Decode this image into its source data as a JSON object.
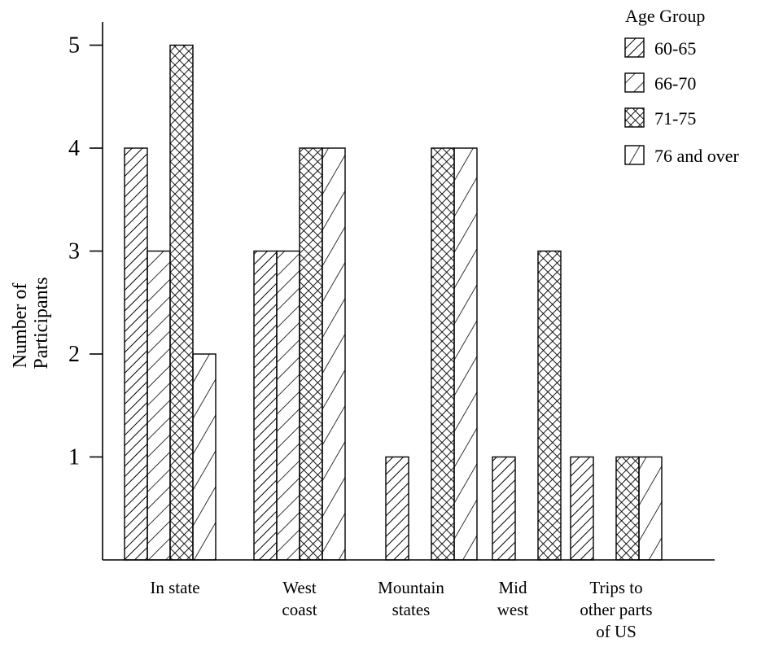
{
  "chart_data": {
    "type": "bar",
    "ylabel_lines": [
      "Number of",
      "Participants"
    ],
    "xlabel": "",
    "ylim": [
      0,
      5.5
    ],
    "yticks": [
      1,
      2,
      3,
      4,
      5
    ],
    "grid": false,
    "legend_position": "top-right",
    "legend_title": "Age Group",
    "categories": [
      [
        "In state"
      ],
      [
        "West",
        "coast"
      ],
      [
        "Mountain",
        "states"
      ],
      [
        "Mid",
        "west"
      ],
      [
        "Trips to",
        "other parts",
        "of US"
      ]
    ],
    "series": [
      {
        "name": "60-65",
        "pattern": "dense-diagonal",
        "values": [
          4,
          3,
          1,
          1,
          1
        ]
      },
      {
        "name": "66-70",
        "pattern": "wide-diagonal",
        "values": [
          3,
          3,
          0,
          0,
          0
        ]
      },
      {
        "name": "71-75",
        "pattern": "crosshatch",
        "values": [
          5,
          4,
          4,
          3,
          1
        ]
      },
      {
        "name": "76 and over",
        "pattern": "steep-diagonal",
        "values": [
          2,
          4,
          4,
          0,
          1
        ]
      }
    ]
  }
}
